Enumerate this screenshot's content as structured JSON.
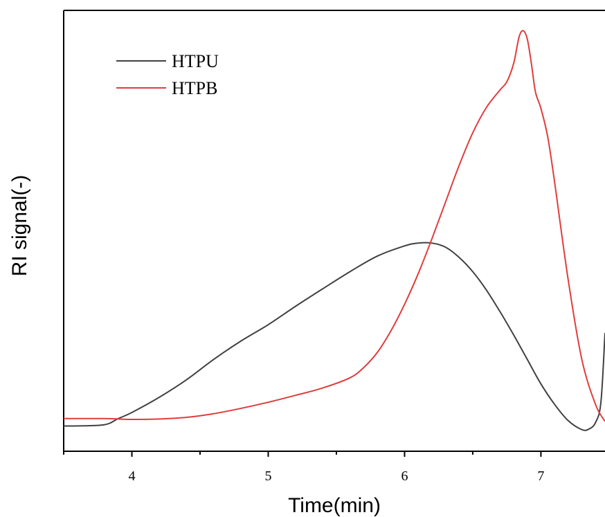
{
  "chart_data": {
    "type": "line",
    "title": "",
    "xlabel": "Time(min)",
    "ylabel": "RI signal(-)",
    "xlim": [
      3.5,
      7.47
    ],
    "ylim": [
      -0.08,
      1.0
    ],
    "x_ticks": [
      4,
      5,
      6,
      7
    ],
    "x_tick_labels": [
      "4",
      "5",
      "6",
      "7"
    ],
    "y_ticks_shown": false,
    "grid": false,
    "legend_position": "top-left",
    "series": [
      {
        "name": "HTPU",
        "color": "#404040",
        "points": [
          [
            3.5,
            -0.018
          ],
          [
            3.6,
            -0.018
          ],
          [
            3.8,
            -0.015
          ],
          [
            3.9,
            0.0
          ],
          [
            4.0,
            0.015
          ],
          [
            4.2,
            0.052
          ],
          [
            4.4,
            0.095
          ],
          [
            4.6,
            0.145
          ],
          [
            4.8,
            0.19
          ],
          [
            5.0,
            0.23
          ],
          [
            5.2,
            0.275
          ],
          [
            5.4,
            0.318
          ],
          [
            5.6,
            0.36
          ],
          [
            5.8,
            0.398
          ],
          [
            6.0,
            0.423
          ],
          [
            6.1,
            0.43
          ],
          [
            6.2,
            0.43
          ],
          [
            6.3,
            0.42
          ],
          [
            6.4,
            0.395
          ],
          [
            6.5,
            0.36
          ],
          [
            6.6,
            0.315
          ],
          [
            6.7,
            0.262
          ],
          [
            6.8,
            0.205
          ],
          [
            6.9,
            0.145
          ],
          [
            7.0,
            0.085
          ],
          [
            7.1,
            0.035
          ],
          [
            7.2,
            -0.005
          ],
          [
            7.3,
            -0.027
          ],
          [
            7.35,
            -0.026
          ],
          [
            7.4,
            -0.01
          ],
          [
            7.44,
            0.04
          ],
          [
            7.47,
            0.21
          ]
        ]
      },
      {
        "name": "HTPB",
        "color": "#e03c3c",
        "points": [
          [
            3.5,
            0.0
          ],
          [
            3.8,
            0.0
          ],
          [
            4.0,
            -0.002
          ],
          [
            4.2,
            -0.001
          ],
          [
            4.4,
            0.003
          ],
          [
            4.6,
            0.012
          ],
          [
            4.8,
            0.025
          ],
          [
            5.0,
            0.04
          ],
          [
            5.2,
            0.057
          ],
          [
            5.4,
            0.075
          ],
          [
            5.6,
            0.1
          ],
          [
            5.7,
            0.125
          ],
          [
            5.8,
            0.162
          ],
          [
            5.9,
            0.215
          ],
          [
            6.0,
            0.28
          ],
          [
            6.1,
            0.355
          ],
          [
            6.2,
            0.44
          ],
          [
            6.3,
            0.53
          ],
          [
            6.4,
            0.62
          ],
          [
            6.5,
            0.7
          ],
          [
            6.6,
            0.762
          ],
          [
            6.7,
            0.805
          ],
          [
            6.75,
            0.825
          ],
          [
            6.8,
            0.87
          ],
          [
            6.84,
            0.935
          ],
          [
            6.87,
            0.95
          ],
          [
            6.9,
            0.93
          ],
          [
            6.93,
            0.87
          ],
          [
            6.96,
            0.8
          ],
          [
            7.0,
            0.76
          ],
          [
            7.05,
            0.69
          ],
          [
            7.1,
            0.58
          ],
          [
            7.2,
            0.34
          ],
          [
            7.3,
            0.145
          ],
          [
            7.4,
            0.035
          ],
          [
            7.47,
            -0.007
          ]
        ]
      }
    ]
  }
}
